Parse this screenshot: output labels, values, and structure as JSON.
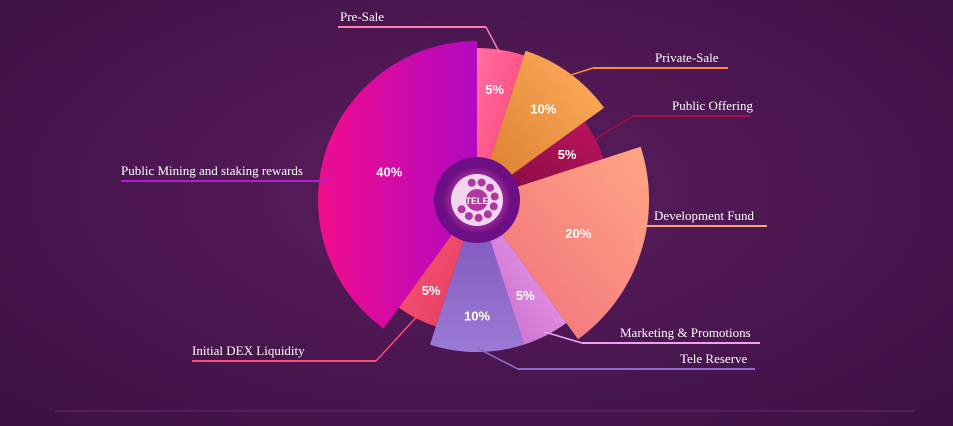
{
  "chart_data": {
    "type": "pie",
    "title": "",
    "center_label": "TELE",
    "slices": [
      {
        "label": "Pre-Sale",
        "value": 5,
        "display": "5%",
        "color": "#ff4f86"
      },
      {
        "label": "Private-Sale",
        "value": 10,
        "display": "10%",
        "color": "#f5a04a"
      },
      {
        "label": "Public Offering",
        "value": 5,
        "display": "5%",
        "color": "#a80d4f"
      },
      {
        "label": "Development Fund",
        "value": 20,
        "display": "20%",
        "color": "#ff9a7a"
      },
      {
        "label": "Marketing & Promotions",
        "value": 5,
        "display": "5%",
        "color": "#e68ee6"
      },
      {
        "label": "Tele Reserve",
        "value": 10,
        "display": "10%",
        "color": "#8e6ccc"
      },
      {
        "label": "Initial DEX Liquidity",
        "value": 5,
        "display": "5%",
        "color": "#ff4f70"
      },
      {
        "label": "Public Mining and staking rewards",
        "value": 40,
        "display": "40%",
        "color": "#d40aa8"
      }
    ]
  }
}
